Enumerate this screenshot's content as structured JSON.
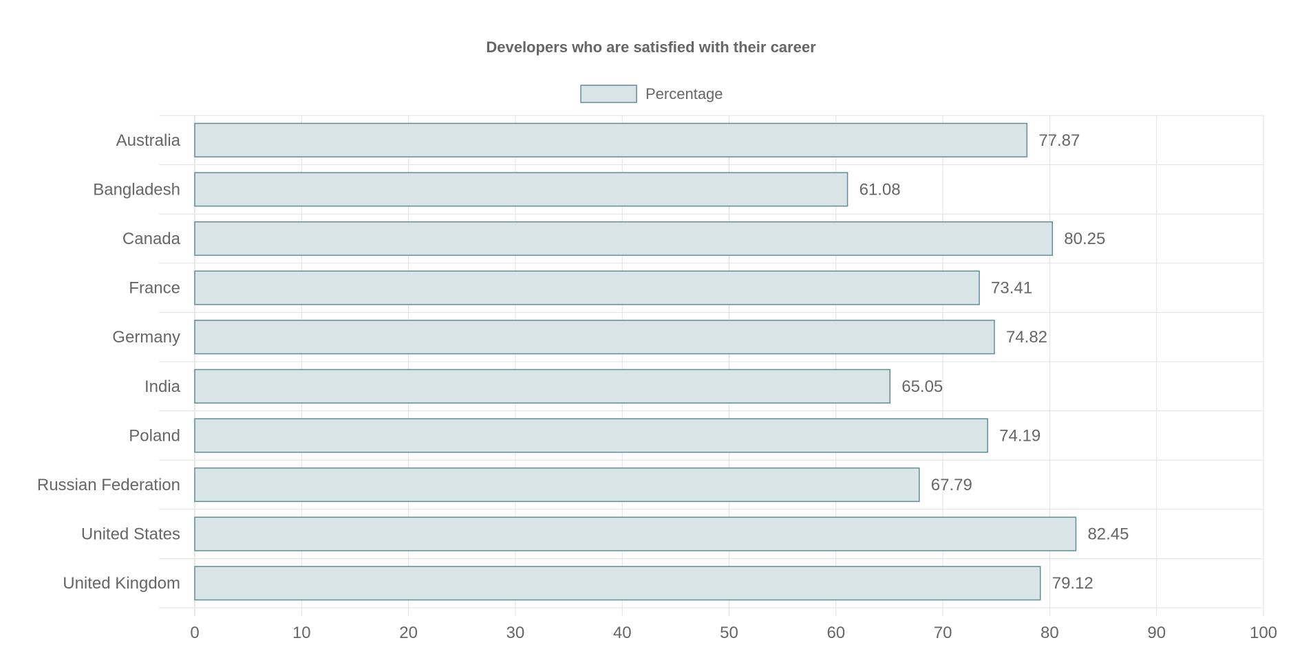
{
  "chart_data": {
    "type": "bar",
    "orientation": "horizontal",
    "title": "Developers who are satisfied with their career",
    "categories": [
      "Australia",
      "Bangladesh",
      "Canada",
      "France",
      "Germany",
      "India",
      "Poland",
      "Russian Federation",
      "United States",
      "United Kingdom"
    ],
    "series": [
      {
        "name": "Percentage",
        "values": [
          77.87,
          61.08,
          80.25,
          73.41,
          74.82,
          65.05,
          74.19,
          67.79,
          82.45,
          79.12
        ]
      }
    ],
    "xlim": [
      0,
      100
    ],
    "x_ticks": [
      0,
      10,
      20,
      30,
      40,
      50,
      60,
      70,
      80,
      90,
      100
    ],
    "grid": true,
    "legend_position": "top",
    "data_labels": true,
    "colors": {
      "bar_fill": "#d9e4e6",
      "bar_stroke": "#5f8e96",
      "grid": "#e1e1e1",
      "text": "#666666",
      "title": "#666666"
    }
  }
}
